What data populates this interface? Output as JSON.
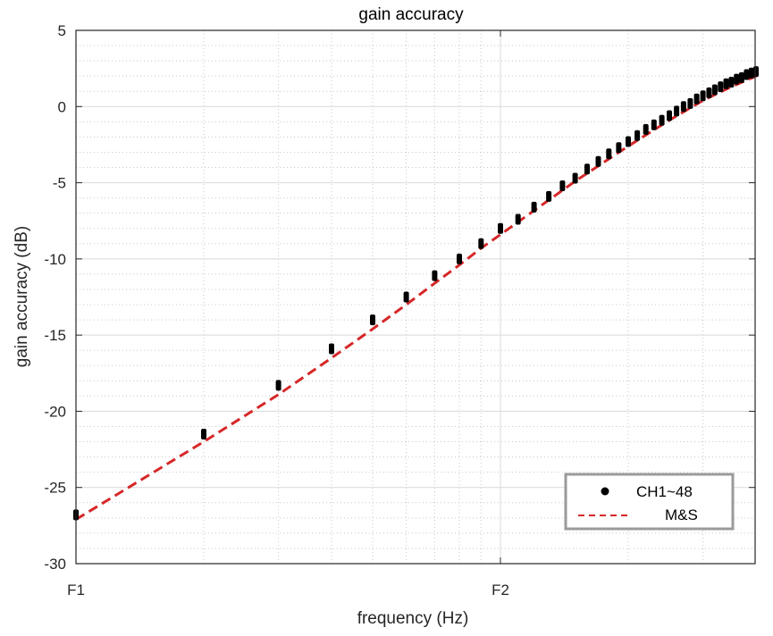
{
  "chart_data": {
    "type": "line",
    "title": "gain accuracy",
    "xlabel": "frequency (Hz)",
    "ylabel": "gain accuracy (dB)",
    "xscale": "log",
    "xlim_decades": [
      0,
      1.6
    ],
    "xticks": [
      {
        "decade": 0,
        "label": "F1"
      },
      {
        "decade": 1,
        "label": "F2"
      }
    ],
    "ylim": [
      -30,
      5
    ],
    "yticks": [
      5,
      0,
      -5,
      -10,
      -15,
      -20,
      -25,
      -30
    ],
    "grid": "major and minor",
    "legend_position": "bottom-right",
    "series": [
      {
        "name": "CH1~48",
        "style": "markers",
        "color": "#000000",
        "x": [
          1,
          2,
          3,
          4,
          5,
          6,
          7,
          8,
          9,
          10,
          11,
          12,
          13,
          14,
          15,
          16,
          17,
          18,
          19,
          20,
          21,
          22,
          23,
          24,
          25,
          26,
          27,
          28,
          29,
          30,
          31,
          32,
          33,
          34,
          35,
          36,
          37,
          38,
          39,
          40
        ],
        "y": [
          -26.8,
          -21.5,
          -18.3,
          -15.9,
          -14.0,
          -12.5,
          -11.1,
          -10.0,
          -9.0,
          -8.0,
          -7.4,
          -6.6,
          -5.9,
          -5.2,
          -4.7,
          -4.1,
          -3.6,
          -3.1,
          -2.7,
          -2.3,
          -1.9,
          -1.5,
          -1.2,
          -0.9,
          -0.6,
          -0.3,
          0.0,
          0.2,
          0.5,
          0.7,
          0.9,
          1.1,
          1.3,
          1.5,
          1.6,
          1.8,
          1.9,
          2.1,
          2.2,
          2.3
        ]
      },
      {
        "name": "M&S",
        "style": "dashed",
        "color": "#d62728",
        "x": [
          1,
          2,
          3,
          4,
          5,
          6,
          7,
          8,
          9,
          10,
          15,
          20,
          25,
          30,
          35,
          40
        ],
        "y": [
          -27.1,
          -22.0,
          -18.9,
          -16.5,
          -14.6,
          -13.0,
          -11.6,
          -10.4,
          -9.3,
          -8.4,
          -4.9,
          -2.6,
          -0.9,
          0.4,
          1.3,
          2.0
        ]
      }
    ]
  }
}
